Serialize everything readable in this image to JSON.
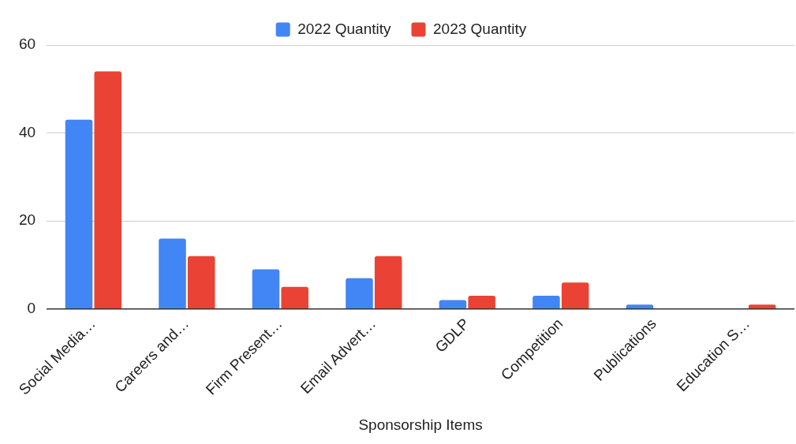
{
  "chart_data": {
    "type": "bar",
    "xlabel": "Sponsorship Items",
    "categories": [
      "Social Media…",
      "Careers and…",
      "Firm Present…",
      "Email Advert…",
      "GDLP",
      "Competition",
      "Publications",
      "Education S…"
    ],
    "series": [
      {
        "name": "2022 Quantity",
        "color": "#4285f4",
        "values": [
          43,
          16,
          9,
          7,
          2,
          3,
          1,
          0
        ]
      },
      {
        "name": "2023 Quantity",
        "color": "#ea4335",
        "values": [
          54,
          12,
          5,
          12,
          3,
          6,
          0,
          1
        ]
      }
    ],
    "ylim": [
      0,
      60
    ],
    "yticks": [
      0,
      20,
      40,
      60
    ],
    "grid": "y",
    "legend": "top"
  }
}
